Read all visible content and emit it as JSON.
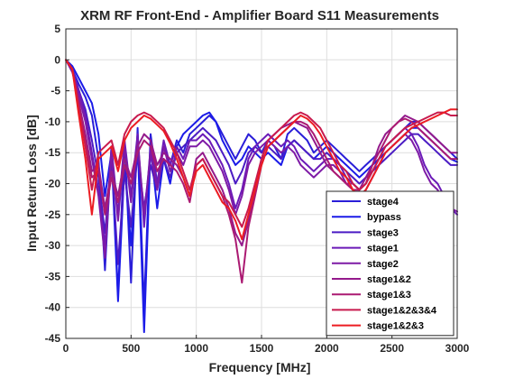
{
  "chart_data": {
    "type": "line",
    "title": "XRM RF Front-End - Amplifier Board S11 Measurements",
    "xlabel": "Frequency [MHz]",
    "ylabel": "Input Return Loss [dB]",
    "xlim": [
      0,
      3000
    ],
    "ylim": [
      -45,
      5
    ],
    "xticks": [
      0,
      500,
      1000,
      1500,
      2000,
      2500,
      3000
    ],
    "yticks": [
      5,
      0,
      -5,
      -10,
      -15,
      -20,
      -25,
      -30,
      -35,
      -40,
      -45
    ],
    "grid": true,
    "legend_position": "bottom-right",
    "series": [
      {
        "name": "stage4",
        "color": "#2a1ed8",
        "x": [
          0,
          50,
          100,
          150,
          200,
          250,
          300,
          350,
          400,
          450,
          500,
          550,
          600,
          650,
          700,
          750,
          800,
          850,
          900,
          950,
          1000,
          1050,
          1100,
          1150,
          1200,
          1250,
          1300,
          1350,
          1400,
          1450,
          1500,
          1550,
          1600,
          1650,
          1700,
          1750,
          1800,
          1850,
          1900,
          1950,
          2000,
          2050,
          2100,
          2150,
          2200,
          2250,
          2300,
          2350,
          2400,
          2450,
          2500,
          2550,
          2600,
          2650,
          2700,
          2750,
          2800,
          2850,
          2900,
          2950,
          3000
        ],
        "y": [
          0,
          -1.5,
          -4,
          -6,
          -9,
          -16,
          -34,
          -14,
          -38,
          -13,
          -36,
          -11,
          -40,
          -12,
          -20,
          -14,
          -17,
          -13,
          -15,
          -12,
          -11,
          -10,
          -9,
          -10,
          -12,
          -14,
          -16,
          -14,
          -12,
          -13,
          -15,
          -13,
          -14,
          -16,
          -12,
          -11,
          -12,
          -13,
          -15,
          -14,
          -13,
          -14,
          -15,
          -16,
          -17,
          -18,
          -17,
          -16,
          -15,
          -14,
          -13,
          -12,
          -11,
          -10,
          -10,
          -11,
          -12,
          -13,
          -14,
          -15,
          -16
        ]
      },
      {
        "name": "bypass",
        "color": "#1b1be8",
        "x": [
          0,
          50,
          100,
          150,
          200,
          250,
          300,
          350,
          400,
          450,
          500,
          550,
          600,
          650,
          700,
          750,
          800,
          850,
          900,
          950,
          1000,
          1050,
          1100,
          1150,
          1200,
          1250,
          1300,
          1350,
          1400,
          1450,
          1500,
          1550,
          1600,
          1650,
          1700,
          1750,
          1800,
          1850,
          1900,
          1950,
          2000,
          2050,
          2100,
          2150,
          2200,
          2250,
          2300,
          2350,
          2400,
          2450,
          2500,
          2550,
          2600,
          2650,
          2700,
          2750,
          2800,
          2850,
          2900,
          2950,
          3000
        ],
        "y": [
          0,
          -1,
          -3,
          -5,
          -7,
          -12,
          -22,
          -15,
          -39,
          -17,
          -30,
          -13,
          -44,
          -14,
          -24,
          -16,
          -20,
          -14,
          -12,
          -11,
          -10,
          -9,
          -8.5,
          -10,
          -13,
          -15,
          -17,
          -16,
          -14,
          -15,
          -16,
          -15,
          -16,
          -17,
          -14,
          -13,
          -14,
          -15,
          -16,
          -15,
          -14,
          -15,
          -16,
          -17,
          -18,
          -19,
          -18,
          -17,
          -16,
          -15,
          -14,
          -13,
          -12,
          -11,
          -11,
          -12,
          -13,
          -14,
          -15,
          -16,
          -16.5
        ]
      },
      {
        "name": "stage3",
        "color": "#4b1cc4",
        "x": [
          0,
          50,
          100,
          150,
          200,
          250,
          300,
          350,
          400,
          450,
          500,
          550,
          600,
          650,
          700,
          750,
          800,
          850,
          900,
          950,
          1000,
          1050,
          1100,
          1150,
          1200,
          1250,
          1300,
          1350,
          1400,
          1450,
          1500,
          1550,
          1600,
          1650,
          1700,
          1750,
          1800,
          1850,
          1900,
          1950,
          2000,
          2050,
          2100,
          2150,
          2200,
          2250,
          2300,
          2350,
          2400,
          2450,
          2500,
          2550,
          2600,
          2650,
          2700,
          2750,
          2800,
          2850,
          2900,
          2950,
          3000
        ],
        "y": [
          0,
          -1.5,
          -5,
          -8,
          -13,
          -19,
          -28,
          -16,
          -33,
          -18,
          -27,
          -15,
          -24,
          -17,
          -21,
          -16,
          -19,
          -15,
          -14,
          -13,
          -12,
          -11,
          -12,
          -13,
          -15,
          -17,
          -20,
          -18,
          -15,
          -14,
          -15,
          -14,
          -15,
          -16,
          -14,
          -13,
          -14,
          -15,
          -16,
          -16,
          -15,
          -16,
          -17,
          -18,
          -19,
          -20,
          -19,
          -18,
          -17,
          -16,
          -15,
          -14,
          -13,
          -12,
          -12,
          -13,
          -14,
          -15,
          -16,
          -17,
          -17
        ]
      },
      {
        "name": "stage1",
        "color": "#6b1ab8",
        "x": [
          0,
          50,
          100,
          150,
          200,
          250,
          300,
          350,
          400,
          450,
          500,
          550,
          600,
          650,
          700,
          750,
          800,
          850,
          900,
          950,
          1000,
          1050,
          1100,
          1150,
          1200,
          1250,
          1300,
          1350,
          1400,
          1450,
          1500,
          1550,
          1600,
          1650,
          1700,
          1750,
          1800,
          1850,
          1900,
          1950,
          2000,
          2050,
          2100,
          2150,
          2200,
          2250,
          2300,
          2350,
          2400,
          2450,
          2500,
          2550,
          2600,
          2650,
          2700,
          2750,
          2800,
          2850,
          2900,
          2950,
          3000
        ],
        "y": [
          0,
          -1.5,
          -5,
          -9,
          -15,
          -21,
          -30,
          -14,
          -25,
          -13,
          -22,
          -12,
          -27,
          -14,
          -20,
          -13,
          -17,
          -14,
          -16,
          -13,
          -13,
          -12,
          -13,
          -15,
          -17,
          -20,
          -24,
          -21,
          -16,
          -14,
          -13,
          -12,
          -13,
          -14,
          -13,
          -14,
          -16,
          -17,
          -18,
          -17,
          -16,
          -16,
          -17,
          -19,
          -20,
          -21,
          -20,
          -18,
          -16,
          -14,
          -13,
          -12,
          -11,
          -12,
          -14,
          -17,
          -19,
          -20,
          -22,
          -24,
          -25
        ]
      },
      {
        "name": "stage2",
        "color": "#7e1aa6",
        "x": [
          0,
          50,
          100,
          150,
          200,
          250,
          300,
          350,
          400,
          450,
          500,
          550,
          600,
          650,
          700,
          750,
          800,
          850,
          900,
          950,
          1000,
          1050,
          1100,
          1150,
          1200,
          1250,
          1300,
          1350,
          1400,
          1450,
          1500,
          1550,
          1600,
          1650,
          1700,
          1750,
          1800,
          1850,
          1900,
          1950,
          2000,
          2050,
          2100,
          2150,
          2200,
          2250,
          2300,
          2350,
          2400,
          2450,
          2500,
          2550,
          2600,
          2650,
          2700,
          2750,
          2800,
          2850,
          2900,
          2950,
          3000
        ],
        "y": [
          0,
          -2,
          -6,
          -10,
          -16,
          -22,
          -32,
          -15,
          -26,
          -14,
          -23,
          -13,
          -25,
          -15,
          -21,
          -14,
          -18,
          -15,
          -17,
          -14,
          -14,
          -13,
          -14,
          -16,
          -18,
          -21,
          -25,
          -22,
          -17,
          -15,
          -14,
          -13,
          -14,
          -15,
          -14,
          -15,
          -17,
          -18,
          -19,
          -18,
          -17,
          -17,
          -18,
          -20,
          -21,
          -22,
          -21,
          -19,
          -17,
          -15,
          -14,
          -13,
          -12,
          -13,
          -15,
          -18,
          -20,
          -21,
          -23,
          -24,
          -24.5
        ]
      },
      {
        "name": "stage1&2",
        "color": "#941a8c",
        "x": [
          0,
          50,
          100,
          150,
          200,
          250,
          300,
          350,
          400,
          450,
          500,
          550,
          600,
          650,
          700,
          750,
          800,
          850,
          900,
          950,
          1000,
          1050,
          1100,
          1150,
          1200,
          1250,
          1300,
          1350,
          1400,
          1450,
          1500,
          1550,
          1600,
          1650,
          1700,
          1750,
          1800,
          1850,
          1900,
          1950,
          2000,
          2050,
          2100,
          2150,
          2200,
          2250,
          2300,
          2350,
          2400,
          2450,
          2500,
          2550,
          2600,
          2650,
          2700,
          2750,
          2800,
          2850,
          2900,
          2950,
          3000
        ],
        "y": [
          0,
          -1.5,
          -7,
          -12,
          -18,
          -17,
          -24,
          -18,
          -22,
          -16,
          -19,
          -14,
          -12,
          -13,
          -17,
          -15,
          -16,
          -17,
          -19,
          -22,
          -16,
          -15,
          -17,
          -19,
          -21,
          -24,
          -28,
          -30,
          -26,
          -21,
          -16,
          -13,
          -12,
          -11,
          -10.5,
          -10,
          -10.5,
          -11,
          -13,
          -15,
          -17,
          -18,
          -19,
          -20,
          -20,
          -21,
          -19,
          -17,
          -14,
          -12,
          -11,
          -10,
          -9,
          -9.5,
          -10,
          -11,
          -12,
          -13,
          -14,
          -15,
          -15
        ]
      },
      {
        "name": "stage1&3",
        "color": "#ab1a72",
        "x": [
          0,
          50,
          100,
          150,
          200,
          250,
          300,
          350,
          400,
          450,
          500,
          550,
          600,
          650,
          700,
          750,
          800,
          850,
          900,
          950,
          1000,
          1050,
          1100,
          1150,
          1200,
          1250,
          1300,
          1350,
          1400,
          1450,
          1500,
          1550,
          1600,
          1650,
          1700,
          1750,
          1800,
          1850,
          1900,
          1950,
          2000,
          2050,
          2100,
          2150,
          2200,
          2250,
          2300,
          2350,
          2400,
          2450,
          2500,
          2550,
          2600,
          2650,
          2700,
          2750,
          2800,
          2850,
          2900,
          2950,
          3000
        ],
        "y": [
          0,
          -1.5,
          -7,
          -13,
          -19,
          -18,
          -25,
          -19,
          -23,
          -17,
          -20,
          -15,
          -13,
          -14,
          -18,
          -16,
          -17,
          -18,
          -20,
          -23,
          -17,
          -16,
          -18,
          -20,
          -22,
          -25,
          -29,
          -36,
          -27,
          -22,
          -17,
          -14,
          -13,
          -12,
          -11,
          -10,
          -10,
          -10.5,
          -12,
          -14,
          -16,
          -18,
          -19,
          -20,
          -21,
          -21,
          -20,
          -17,
          -15,
          -13,
          -11,
          -10,
          -9.5,
          -10,
          -11,
          -12,
          -13,
          -14,
          -15,
          -16,
          -16
        ]
      },
      {
        "name": "stage1&2&3&4",
        "color": "#c81a4e",
        "x": [
          0,
          50,
          100,
          150,
          200,
          250,
          300,
          350,
          400,
          450,
          500,
          550,
          600,
          650,
          700,
          750,
          800,
          850,
          900,
          950,
          1000,
          1050,
          1100,
          1150,
          1200,
          1250,
          1300,
          1350,
          1400,
          1450,
          1500,
          1550,
          1600,
          1650,
          1700,
          1750,
          1800,
          1850,
          1900,
          1950,
          2000,
          2050,
          2100,
          2150,
          2200,
          2250,
          2300,
          2350,
          2400,
          2450,
          2500,
          2550,
          2600,
          2650,
          2700,
          2750,
          2800,
          2850,
          2900,
          2950,
          3000
        ],
        "y": [
          0,
          -1.5,
          -8,
          -14,
          -21,
          -15,
          -14,
          -13,
          -17,
          -12,
          -10,
          -9,
          -8.5,
          -9,
          -10,
          -11,
          -13,
          -15,
          -18,
          -21,
          -17,
          -16,
          -18,
          -20,
          -22,
          -23,
          -25,
          -27,
          -24,
          -20,
          -16,
          -13,
          -12,
          -11,
          -10,
          -9,
          -8.5,
          -9,
          -10,
          -11,
          -13,
          -15,
          -17,
          -18,
          -20,
          -21,
          -20,
          -18,
          -16,
          -14,
          -13,
          -12,
          -11,
          -10.5,
          -10,
          -9.5,
          -9,
          -8.5,
          -8.5,
          -9,
          -9
        ]
      },
      {
        "name": "stage1&2&3",
        "color": "#ec1c22",
        "x": [
          0,
          50,
          100,
          150,
          200,
          250,
          300,
          350,
          400,
          450,
          500,
          550,
          600,
          650,
          700,
          750,
          800,
          850,
          900,
          950,
          1000,
          1050,
          1100,
          1150,
          1200,
          1250,
          1300,
          1350,
          1400,
          1450,
          1500,
          1550,
          1600,
          1650,
          1700,
          1750,
          1800,
          1850,
          1900,
          1950,
          2000,
          2050,
          2100,
          2150,
          2200,
          2250,
          2300,
          2350,
          2400,
          2450,
          2500,
          2550,
          2600,
          2650,
          2700,
          2750,
          2800,
          2850,
          2900,
          2950,
          3000
        ],
        "y": [
          0,
          -1.5,
          -9,
          -16,
          -25,
          -16,
          -15,
          -14,
          -18,
          -13,
          -11,
          -10,
          -9,
          -9.5,
          -10.5,
          -11.5,
          -13.5,
          -16,
          -19,
          -22,
          -18,
          -17,
          -19,
          -21,
          -23,
          -24,
          -26,
          -29,
          -25,
          -21,
          -17,
          -14,
          -13,
          -12,
          -11,
          -10,
          -9,
          -9.5,
          -10.5,
          -12,
          -14,
          -16,
          -18,
          -19,
          -21,
          -22,
          -21,
          -19,
          -17,
          -15,
          -14,
          -13,
          -12,
          -11,
          -10.5,
          -10,
          -9.5,
          -9,
          -8.5,
          -8,
          -8
        ]
      }
    ]
  }
}
